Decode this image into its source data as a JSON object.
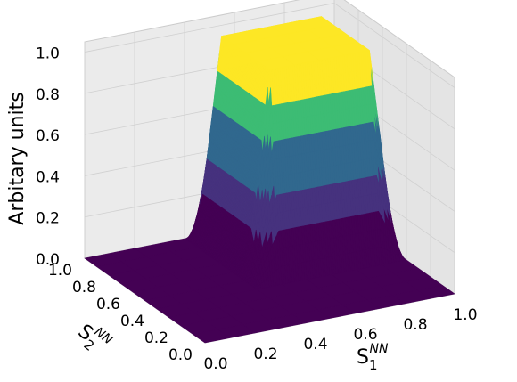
{
  "chart_data": {
    "type": "surface3d",
    "xlabel": {
      "text": "S",
      "sub": "1",
      "sup": "NN"
    },
    "ylabel": {
      "text": "S",
      "sub": "2",
      "sup": "NN"
    },
    "zlabel": "Arbitary units",
    "x": [
      0,
      0.1,
      0.2,
      0.3,
      0.4,
      0.5,
      0.6,
      0.7,
      0.8,
      0.9,
      1.0
    ],
    "y": [
      0,
      0.1,
      0.2,
      0.3,
      0.4,
      0.5,
      0.6,
      0.7,
      0.8,
      0.9,
      1.0
    ],
    "z": [
      [
        0,
        0,
        0,
        0,
        0,
        0,
        0,
        0,
        0,
        0,
        0
      ],
      [
        0,
        0,
        0,
        0,
        0,
        0,
        0,
        0,
        0,
        0,
        0
      ],
      [
        0,
        0,
        0,
        0,
        0,
        0,
        0,
        0,
        0,
        0,
        0
      ],
      [
        0,
        0,
        0,
        0,
        0,
        0,
        0,
        0,
        0,
        0,
        0
      ],
      [
        0,
        0,
        0,
        0,
        0,
        0,
        0,
        0,
        0,
        0,
        0
      ],
      [
        0,
        0,
        0,
        0,
        0,
        1,
        1,
        1,
        1,
        1,
        0
      ],
      [
        0,
        0,
        0,
        0,
        0,
        1,
        1,
        1,
        1,
        1,
        0
      ],
      [
        0,
        0,
        0,
        0,
        0,
        1,
        1,
        1,
        1,
        1,
        0
      ],
      [
        0,
        0,
        0,
        0,
        0,
        1,
        1,
        1,
        1,
        1,
        0
      ],
      [
        0,
        0,
        0,
        0,
        0,
        1,
        1,
        1,
        1,
        1,
        0
      ],
      [
        0,
        0,
        0,
        0,
        0,
        0,
        0,
        0,
        0,
        0,
        0
      ]
    ],
    "xlim": [
      0,
      1.0
    ],
    "ylim": [
      0,
      1.0
    ],
    "zlim": [
      0,
      1.05
    ],
    "xticks": [
      {
        "value": 0,
        "label": "0.0"
      },
      0.2,
      0.4,
      0.6,
      0.8,
      {
        "value": 1,
        "label": "1.0"
      }
    ],
    "yticks": [
      {
        "value": 0,
        "label": "0.0"
      },
      0.2,
      0.4,
      0.6,
      0.8,
      {
        "value": 1,
        "label": "1.0"
      }
    ],
    "zticks": [
      {
        "value": 0,
        "label": "0.0"
      },
      0.2,
      0.4,
      0.6,
      0.8,
      {
        "value": 1,
        "label": "1.0"
      }
    ],
    "colors": [
      "#440154",
      "#46327e",
      "#31688e",
      "#3dbc74",
      "#fde725"
    ],
    "grid": true
  }
}
